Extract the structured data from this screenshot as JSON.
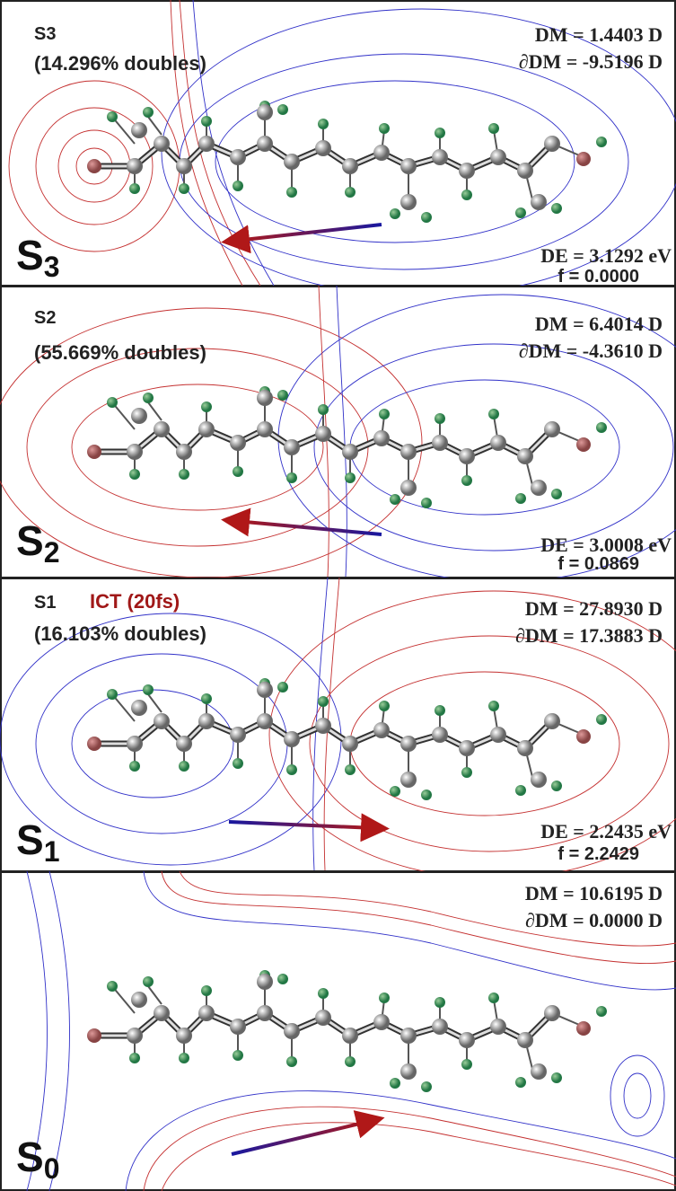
{
  "panels": [
    {
      "state": "S3",
      "doubles": "(14.296% doubles)",
      "dm": "DM = 1.4403 D",
      "ddm": "∂DM = -9.5196 D",
      "de": "DE = 3.1292 eV",
      "f": "f = 0.0000",
      "label": "S",
      "label_sub": "3"
    },
    {
      "state": "S2",
      "doubles": "(55.669% doubles)",
      "dm": "DM = 6.4014 D",
      "ddm": "∂DM = -4.3610 D",
      "de": "DE = 3.0008 eV",
      "f": "f = 0.0869",
      "label": "S",
      "label_sub": "2"
    },
    {
      "state": "S1",
      "note": "ICT (20fs)",
      "doubles": "(16.103% doubles)",
      "dm": "DM = 27.8930 D",
      "ddm": "∂DM = 17.3883 D",
      "de": "DE = 2.2435 eV",
      "f": "f = 2.2429",
      "label": "S",
      "label_sub": "1"
    },
    {
      "dm": "DM = 10.6195 D",
      "ddm": "∂DM = 0.0000 D",
      "label": "S",
      "label_sub": "0"
    }
  ]
}
